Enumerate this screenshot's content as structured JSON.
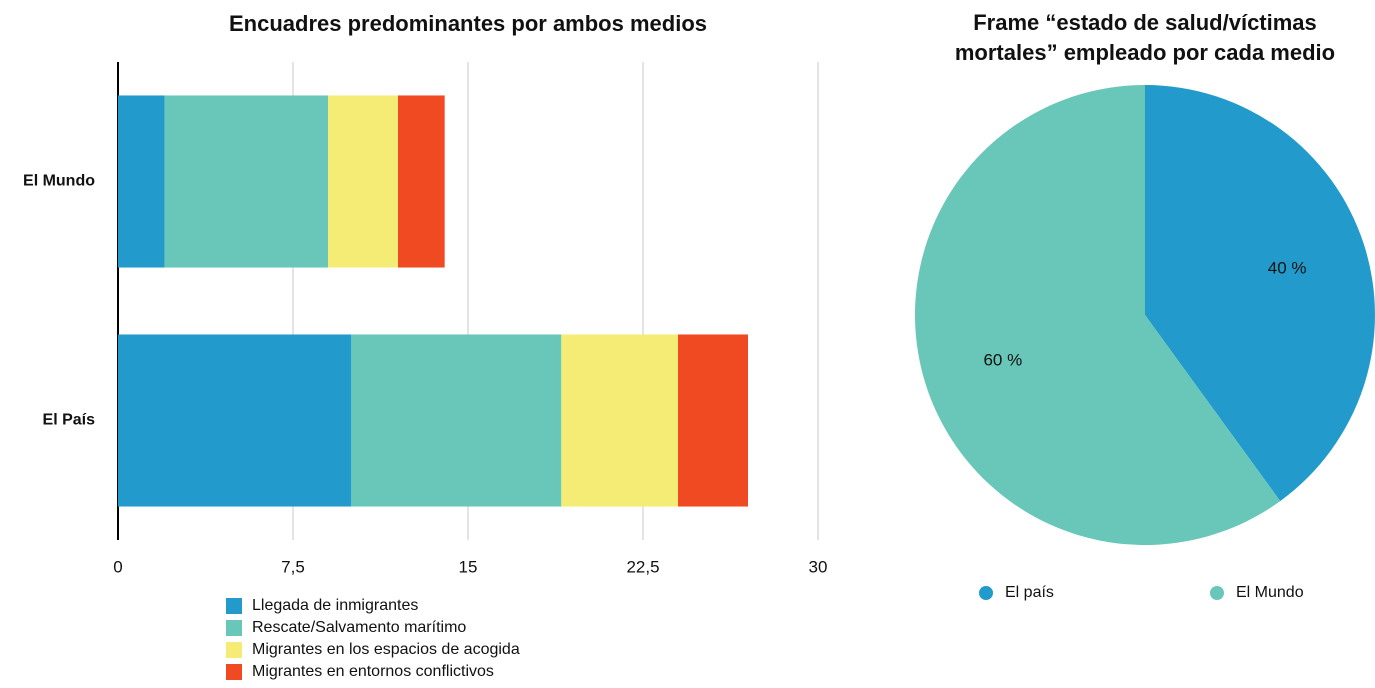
{
  "chart_data": [
    {
      "type": "bar",
      "orientation": "horizontal",
      "stacked": true,
      "grid": true,
      "title": "Encuadres predominantes por ambos medios",
      "categories": [
        "El Mundo",
        "El País"
      ],
      "series": [
        {
          "name": "Llegada de inmigrantes",
          "color": "#229bcc",
          "values": [
            2,
            10
          ]
        },
        {
          "name": "Rescate/Salvamento marítimo",
          "color": "#68c7b8",
          "values": [
            7,
            9
          ]
        },
        {
          "name": "Migrantes en los espacios de acogida",
          "color": "#f4ec74",
          "values": [
            3,
            5
          ]
        },
        {
          "name": "Migrantes en entornos conflictivos",
          "color": "#f04a23",
          "values": [
            2,
            3
          ]
        }
      ],
      "xlim": [
        0,
        30
      ],
      "xticks": [
        0,
        {
          "value": 7.5,
          "label": "7,5"
        },
        15,
        {
          "value": 22.5,
          "label": "22,5"
        },
        30
      ]
    },
    {
      "type": "pie",
      "title": [
        "Frame “estado de salud/víctimas",
        "mortales” empleado por cada medio"
      ],
      "categories": [
        "El país",
        "El Mundo"
      ],
      "values": [
        40,
        60
      ],
      "value_labels": [
        "40 %",
        "60 %"
      ],
      "colors": [
        "#229bcc",
        "#68c7b8"
      ]
    }
  ]
}
